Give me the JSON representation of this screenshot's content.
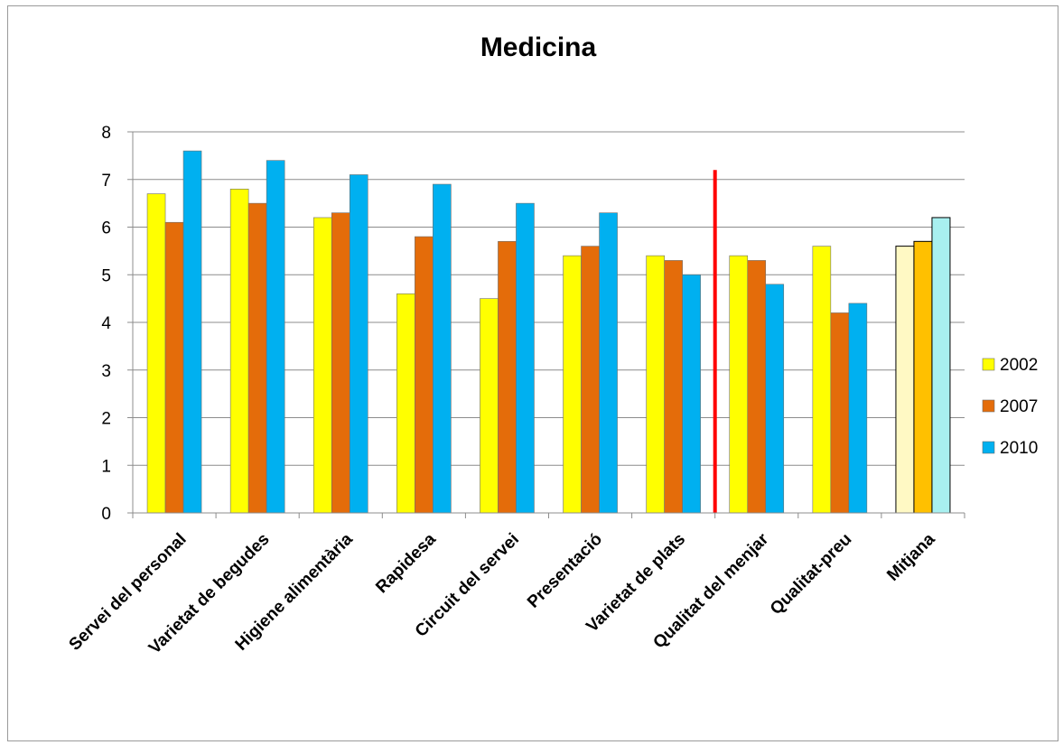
{
  "chart_data": {
    "type": "bar",
    "title": "Medicina",
    "xlabel": "",
    "ylabel": "",
    "ylim": [
      0,
      8
    ],
    "yticks": [
      0,
      1,
      2,
      3,
      4,
      5,
      6,
      7,
      8
    ],
    "grid": true,
    "legend_position": "right",
    "categories": [
      "Servei del personal",
      "Varietat de begudes",
      "Higiene alimentària",
      "Rapidesa",
      "Circuit del servei",
      "Presentació",
      "Varietat de plats",
      "Qualitat del menjar",
      "Qualitat-preu",
      "Mitjana"
    ],
    "series": [
      {
        "name": "2002",
        "color": "#ffff00",
        "values": [
          6.7,
          6.8,
          6.2,
          4.6,
          4.5,
          5.4,
          5.4,
          5.4,
          5.6,
          5.6
        ]
      },
      {
        "name": "2007",
        "color": "#e46c0a",
        "values": [
          6.1,
          6.5,
          6.3,
          5.8,
          5.7,
          5.6,
          5.3,
          5.3,
          4.2,
          5.7
        ]
      },
      {
        "name": "2010",
        "color": "#00b0f0",
        "values": [
          7.6,
          7.4,
          7.1,
          6.9,
          6.5,
          6.3,
          5.0,
          4.8,
          4.4,
          6.2
        ]
      }
    ],
    "highlight_category": "Mitjana",
    "highlight_colors": [
      "#fff9c4",
      "#ffc000",
      "#a8f0f0"
    ],
    "divider": {
      "after_category": "Varietat de plats",
      "top_value": 7.2,
      "color": "#ff0000"
    }
  }
}
